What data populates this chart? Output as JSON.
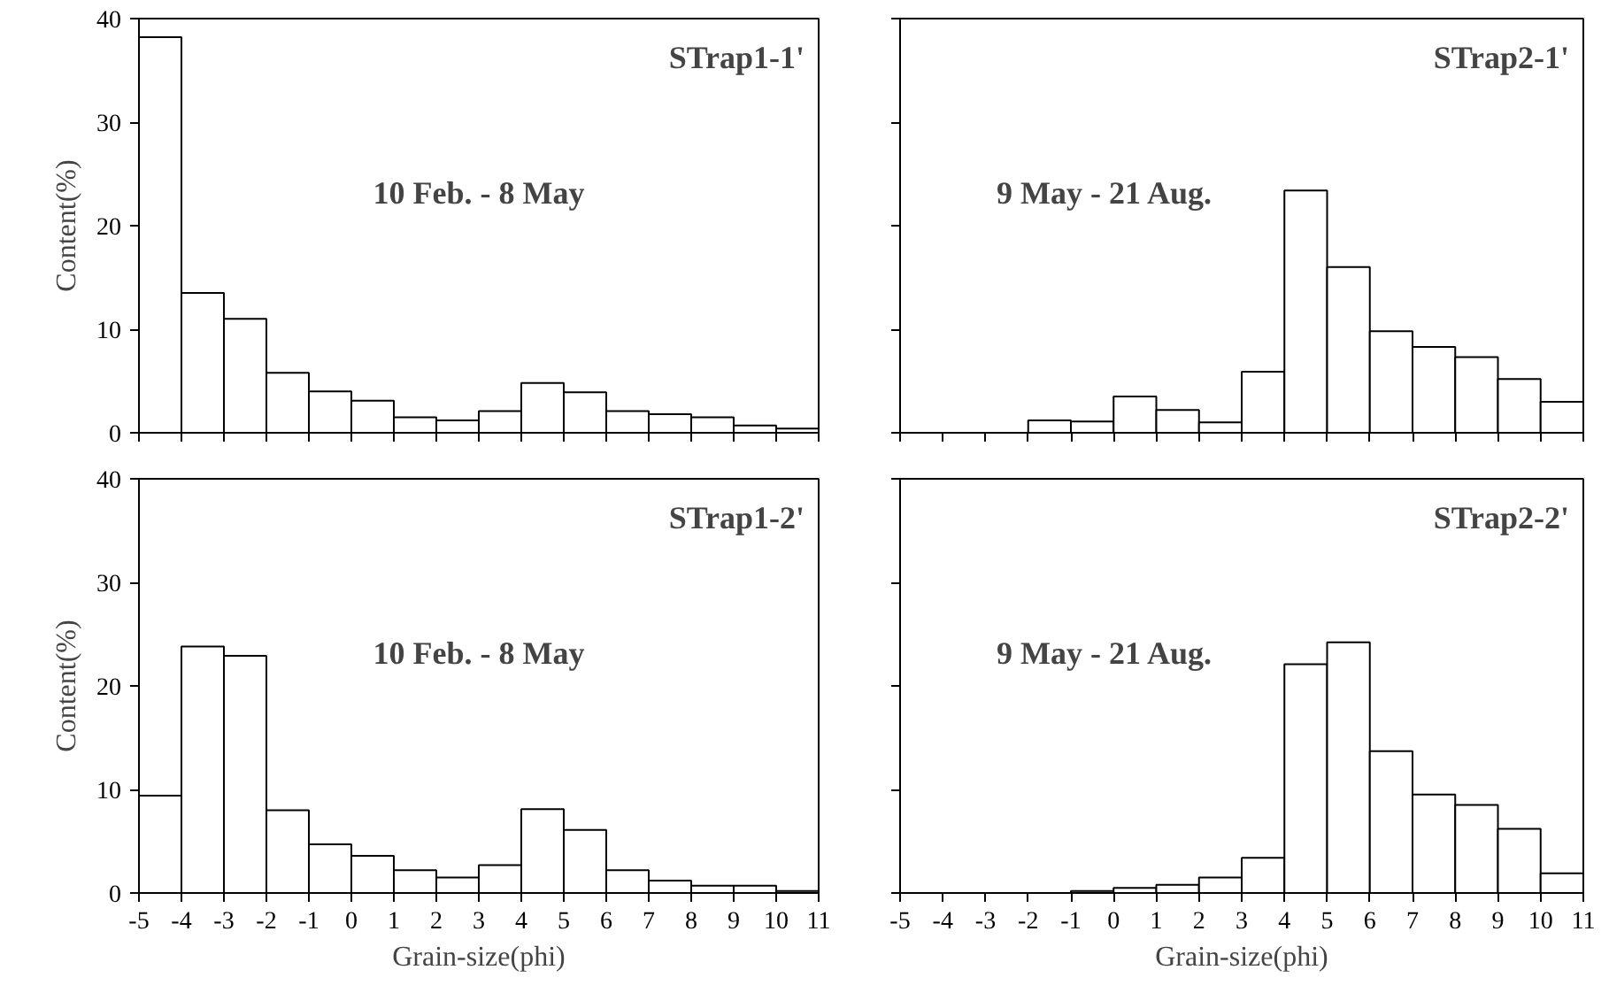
{
  "chart_data": [
    {
      "type": "histogram",
      "title": "STrap1-1'",
      "annotations": [
        "10 Feb. - 8 May"
      ],
      "ylabel": "Content(%)",
      "bins": [
        -5,
        -4,
        -3,
        -2,
        -1,
        0,
        1,
        2,
        3,
        4,
        5,
        6,
        7,
        8,
        9,
        10,
        11
      ],
      "values": [
        38.2,
        13.5,
        11,
        5.8,
        4,
        3.1,
        1.5,
        1.2,
        2.1,
        4.8,
        3.9,
        2.1,
        1.8,
        1.5,
        0.7,
        0.4
      ],
      "color": "#ffffff",
      "xlim": [
        -5,
        11
      ],
      "ylim": [
        0,
        40
      ],
      "xticks": [
        -5,
        -4,
        -3,
        -2,
        -1,
        0,
        1,
        2,
        3,
        4,
        5,
        6,
        7,
        8,
        9,
        10,
        11
      ],
      "yticks": [
        0,
        10,
        20,
        30,
        40
      ],
      "tick_labels": "y",
      "grid": false
    },
    {
      "type": "histogram",
      "title": "STrap2-1'",
      "annotations": [
        "9 May - 21 Aug."
      ],
      "bins": [
        -5,
        -4,
        -3,
        -2,
        -1,
        0,
        1,
        2,
        3,
        4,
        5,
        6,
        7,
        8,
        9,
        10,
        11
      ],
      "values": [
        0,
        0,
        0,
        1.2,
        1.1,
        3.5,
        2.2,
        1.0,
        5.9,
        23.4,
        16.0,
        9.8,
        8.3,
        7.3,
        5.2,
        3.0
      ],
      "color": "#ffffff",
      "xlim": [
        -5,
        11
      ],
      "ylim": [
        0,
        40
      ],
      "xticks": [
        -5,
        -4,
        -3,
        -2,
        -1,
        0,
        1,
        2,
        3,
        4,
        5,
        6,
        7,
        8,
        9,
        10,
        11
      ],
      "yticks": [
        0,
        10,
        20,
        30,
        40
      ],
      "tick_labels": false,
      "grid": false
    },
    {
      "type": "histogram",
      "title": "STrap1-2'",
      "annotations": [
        "10 Feb. - 8 May"
      ],
      "ylabel": "Content(%)",
      "xlabel": "Grain-size(phi)",
      "bins": [
        -5,
        -4,
        -3,
        -2,
        -1,
        0,
        1,
        2,
        3,
        4,
        5,
        6,
        7,
        8,
        9,
        10,
        11
      ],
      "values": [
        9.4,
        23.8,
        22.9,
        8,
        4.7,
        3.6,
        2.2,
        1.5,
        2.7,
        8.1,
        6.1,
        2.2,
        1.2,
        0.7,
        0.7,
        0.2
      ],
      "color": "#ffffff",
      "xlim": [
        -5,
        11
      ],
      "ylim": [
        0,
        40
      ],
      "xticks": [
        -5,
        -4,
        -3,
        -2,
        -1,
        0,
        1,
        2,
        3,
        4,
        5,
        6,
        7,
        8,
        9,
        10,
        11
      ],
      "yticks": [
        0,
        10,
        20,
        30,
        40
      ],
      "grid": false
    },
    {
      "type": "histogram",
      "title": "STrap2-2'",
      "annotations": [
        "9 May - 21 Aug."
      ],
      "xlabel": "Grain-size(phi)",
      "bins": [
        -5,
        -4,
        -3,
        -2,
        -1,
        0,
        1,
        2,
        3,
        4,
        5,
        6,
        7,
        8,
        9,
        10,
        11
      ],
      "values": [
        0,
        0,
        0,
        0,
        0.2,
        0.5,
        0.8,
        1.5,
        3.4,
        22.1,
        24.2,
        13.7,
        9.5,
        8.5,
        6.2,
        1.9
      ],
      "color": "#ffffff",
      "xlim": [
        -5,
        11
      ],
      "ylim": [
        0,
        40
      ],
      "xticks": [
        -5,
        -4,
        -3,
        -2,
        -1,
        0,
        1,
        2,
        3,
        4,
        5,
        6,
        7,
        8,
        9,
        10,
        11
      ],
      "yticks": [
        0,
        10,
        20,
        30,
        40
      ],
      "tick_labels": "x",
      "grid": false
    }
  ]
}
